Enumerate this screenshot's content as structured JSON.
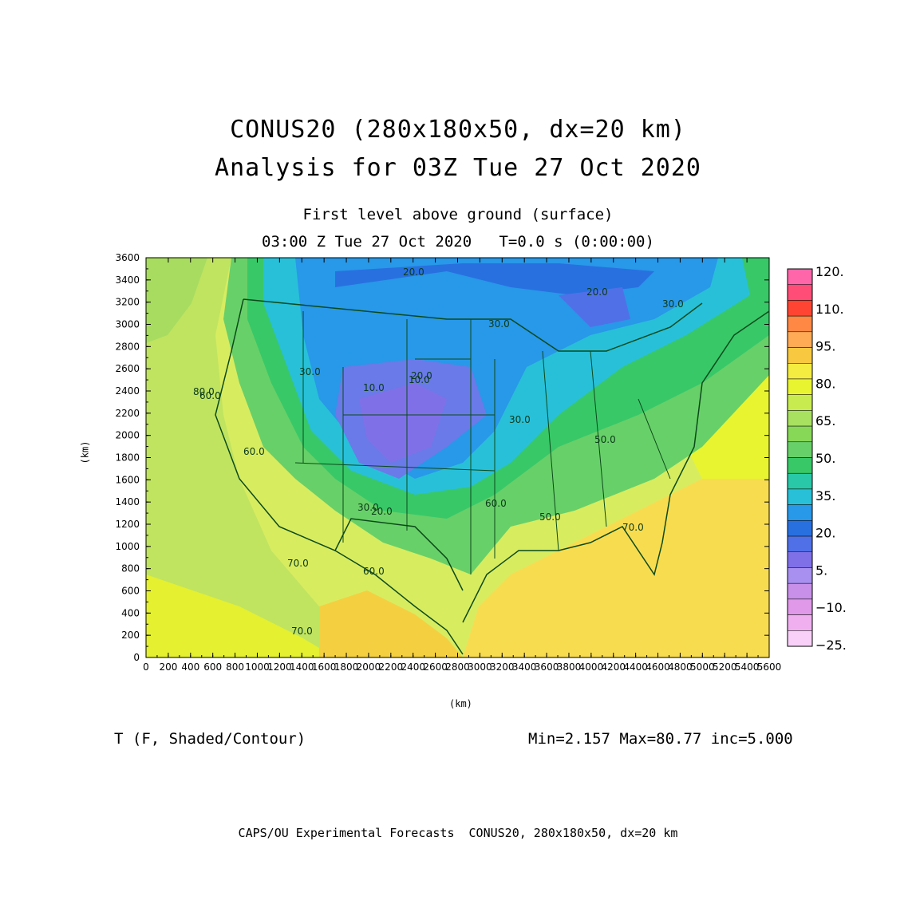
{
  "title_line1": "CONUS20 (280x180x50, dx=20 km)",
  "title_line2": "Analysis for 03Z Tue 27 Oct 2020",
  "subtitle_line1": "First level above ground (surface)",
  "subtitle_line2": "03:00 Z Tue 27 Oct 2020   T=0.0 s (0:00:00)",
  "variable_label": "T (F, Shaded/Contour)",
  "stats_label": "Min=2.157 Max=80.77 inc=5.000",
  "footer": "CAPS/OU Experimental Forecasts  CONUS20, 280x180x50, dx=20 km",
  "x_axis": {
    "unit": "(km)",
    "ticks": [
      "0",
      "200",
      "400",
      "600",
      "800",
      "1000",
      "1200",
      "1400",
      "1600",
      "1800",
      "2000",
      "2200",
      "2400",
      "2600",
      "2800",
      "3000",
      "3200",
      "3400",
      "3600",
      "3800",
      "4000",
      "4200",
      "4400",
      "4600",
      "4800",
      "5000",
      "5200",
      "5400",
      "5600"
    ],
    "range": [
      0,
      5600
    ]
  },
  "y_axis": {
    "unit": "(km)",
    "ticks": [
      "0",
      "200",
      "400",
      "600",
      "800",
      "1000",
      "1200",
      "1400",
      "1600",
      "1800",
      "2000",
      "2200",
      "2400",
      "2600",
      "2800",
      "3000",
      "3200",
      "3400",
      "3600"
    ],
    "range": [
      0,
      3600
    ]
  },
  "colorbar": {
    "labels": [
      "120.",
      "110.",
      "95.",
      "80.",
      "65.",
      "50.",
      "35.",
      "20.",
      "5.",
      "−10.",
      "−25."
    ],
    "colors": [
      "#ff66aa",
      "#ff4d77",
      "#ff4433",
      "#ff8844",
      "#ffaa55",
      "#f8c840",
      "#f4ec40",
      "#e8f430",
      "#c8ec50",
      "#a8e060",
      "#88d858",
      "#68d068",
      "#38c868",
      "#28c8a8",
      "#28c0d8",
      "#2898e8",
      "#2870e0",
      "#5070e8",
      "#8070e8",
      "#a890f0",
      "#c890e8",
      "#e098e8",
      "#f0b0f0",
      "#f8d0f8"
    ]
  },
  "contour_labels": [
    "20.0",
    "20.0",
    "30.0",
    "30.0",
    "30.0",
    "20.0",
    "10.0",
    "30.0",
    "60.0",
    "50.0",
    "70.0",
    "60.0",
    "70.0",
    "60.0",
    "70.0",
    "60.0",
    "30.0",
    "50.0",
    "20.0",
    "80.0",
    "10.0"
  ],
  "colors": {
    "border": "#0a4a1a",
    "ocean_warm": "#f8dc50",
    "land_cold": "#6a7ae8"
  }
}
